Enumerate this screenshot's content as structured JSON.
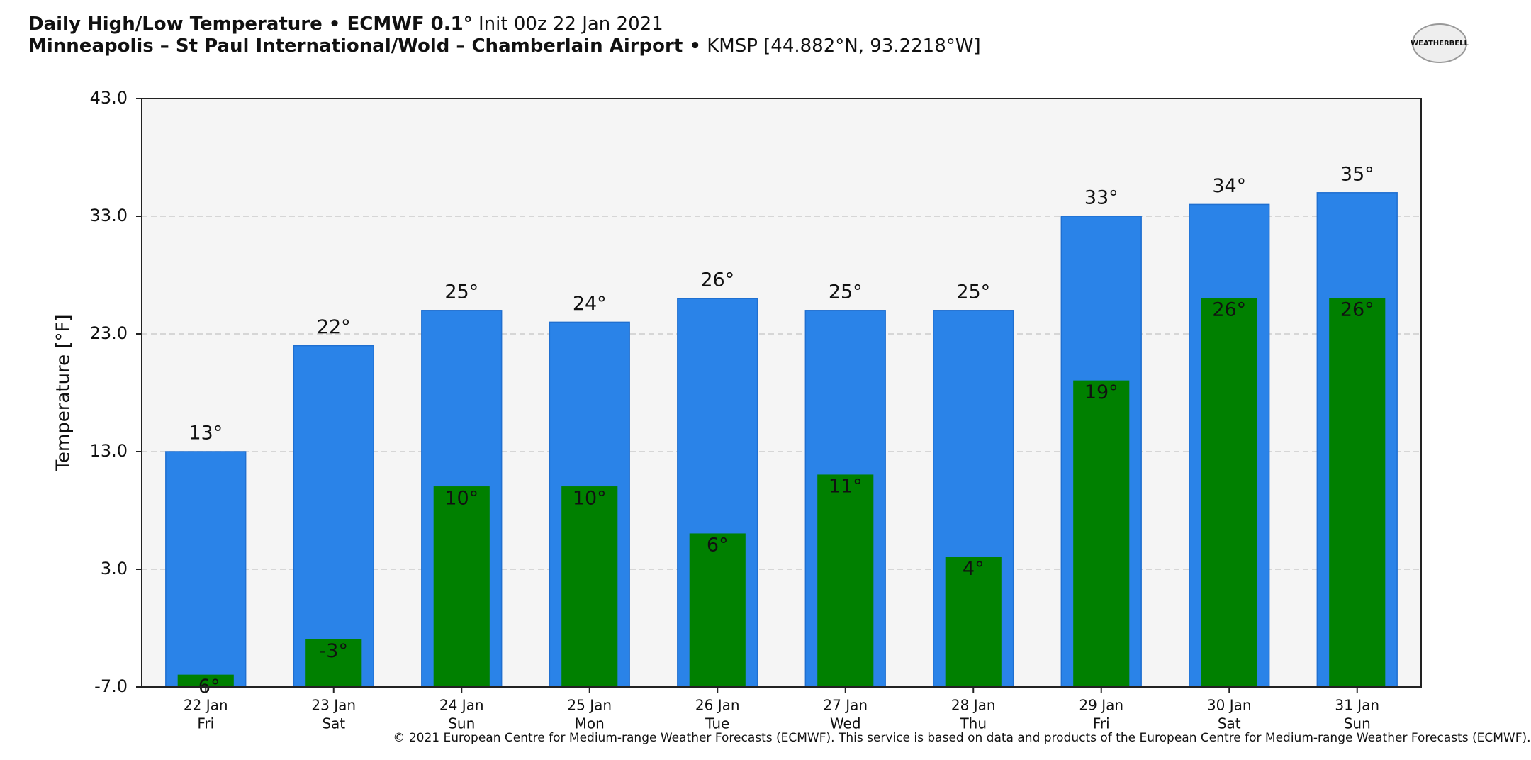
{
  "chart_data": {
    "type": "bar",
    "title_bold": "Daily High/Low Temperature • ECMWF 0.1°",
    "title_rest": " Init 00z 22 Jan 2021",
    "subtitle_bold": "Minneapolis – St Paul International/Wold – Chamberlain Airport •",
    "subtitle_rest": " KMSP [44.882°N, 93.2218°W]",
    "logo": "WEATHERBELL",
    "y_label": "Temperature [°F]",
    "footer": "© 2021 European Centre for Medium-range Weather Forecasts (ECMWF). This service is based on data and products of the European Centre for Medium-range Weather Forecasts (ECMWF).",
    "categories": [
      "22 Jan",
      "23 Jan",
      "24 Jan",
      "25 Jan",
      "26 Jan",
      "27 Jan",
      "28 Jan",
      "29 Jan",
      "30 Jan",
      "31 Jan"
    ],
    "category_sublabels": [
      "Fri",
      "Sat",
      "Sun",
      "Mon",
      "Tue",
      "Wed",
      "Thu",
      "Fri",
      "Sat",
      "Sun"
    ],
    "series": [
      {
        "color": "#2a83e8",
        "values": [
          13,
          22,
          25,
          24,
          26,
          25,
          25,
          33,
          34,
          35
        ],
        "value_labels": [
          "13°",
          "22°",
          "25°",
          "24°",
          "26°",
          "25°",
          "25°",
          "33°",
          "34°",
          "35°"
        ]
      },
      {
        "color": "#008000",
        "values": [
          -6,
          -3,
          10,
          10,
          6,
          11,
          4,
          19,
          26,
          26
        ],
        "value_labels": [
          "-6°",
          "-3°",
          "10°",
          "10°",
          "6°",
          "11°",
          "4°",
          "19°",
          "26°",
          "26°"
        ]
      }
    ],
    "ylim": [
      -7,
      43
    ],
    "yticks": [
      {
        "value": -7,
        "label": "-7.0"
      },
      {
        "value": 3,
        "label": "3.0"
      },
      {
        "value": 13,
        "label": "13.0"
      },
      {
        "value": 23,
        "label": "23.0"
      },
      {
        "value": 33,
        "label": "33.0"
      },
      {
        "value": 43,
        "label": "43.0"
      }
    ],
    "grid": true
  }
}
